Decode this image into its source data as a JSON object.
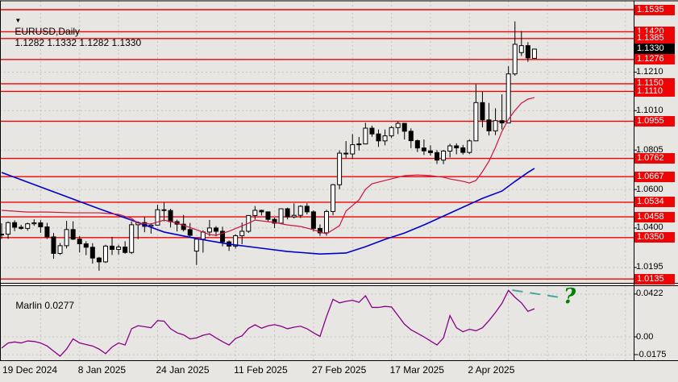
{
  "header": {
    "symbol": "EURUSD,Daily",
    "ohlc": "1.1282 1.1332 1.1282 1.1330"
  },
  "indicator_panel": {
    "name": "Marlin",
    "current_value": "0.0277"
  },
  "annotation": {
    "question_mark": "?"
  },
  "colors": {
    "background": "#e8e6e3",
    "frame": "#000000",
    "grid": "#c7c4c0",
    "level_line": "#ee0404",
    "level_label_bg": "#ee0404",
    "current_price_label_bg": "#000000",
    "bull_candle": "#ffffff",
    "bear_candle": "#000000",
    "candle_outline": "#000000",
    "ma_fast": "#cf1440",
    "ma_slow": "#0000cc",
    "marlin_line": "#880088",
    "projection_dash": "#4ba5a5",
    "question_mark": "#008000"
  },
  "chart_data": {
    "type": "candlestick",
    "symbol": "EURUSD",
    "timeframe": "Daily",
    "current_bar_ohlc": {
      "open": "1.1282",
      "high": "1.1332",
      "low": "1.1282",
      "close": "1.1330"
    },
    "price_axis_ticks": [
      "1.1210",
      "1.1010",
      "1.0805",
      "1.0600",
      "1.0400",
      "1.0195"
    ],
    "level_lines": [
      "1.1535",
      "1.1420",
      "1.1385",
      "1.1276",
      "1.1150",
      "1.1110",
      "1.0955",
      "1.0762",
      "1.0667",
      "1.0534",
      "1.0458",
      "1.0350",
      "1.0135"
    ],
    "current_price": "1.1330",
    "x_axis_labels": [
      {
        "text": "19 Dec 2024",
        "bar": 0
      },
      {
        "text": "8 Jan 2025",
        "bar": 12
      },
      {
        "text": "24 Jan 2025",
        "bar": 24
      },
      {
        "text": "11 Feb 2025",
        "bar": 36
      },
      {
        "text": "27 Feb 2025",
        "bar": 48
      },
      {
        "text": "17 Mar 2025",
        "bar": 60
      },
      {
        "text": "2 Apr 2025",
        "bar": 72
      }
    ],
    "candles": [
      [
        "19 Dec",
        1.0365,
        1.0425,
        1.0344,
        1.0368
      ],
      [
        "20 Dec",
        1.0368,
        1.0434,
        1.0344,
        1.0428
      ],
      [
        "23 Dec",
        1.0428,
        1.044,
        1.0384,
        1.0404
      ],
      [
        "24 Dec",
        1.0404,
        1.0417,
        1.0391,
        1.0398
      ],
      [
        "26 Dec",
        1.0398,
        1.0428,
        1.0386,
        1.0422
      ],
      [
        "27 Dec",
        1.0422,
        1.0445,
        1.0411,
        1.0427
      ],
      [
        "30 Dec",
        1.0427,
        1.0441,
        1.0375,
        1.0406
      ],
      [
        "31 Dec",
        1.0406,
        1.0427,
        1.0343,
        1.0354
      ],
      [
        "2 Jan",
        1.0354,
        1.0374,
        1.024,
        1.0268
      ],
      [
        "3 Jan",
        1.0268,
        1.0322,
        1.026,
        1.0308
      ],
      [
        "6 Jan",
        1.0308,
        1.0437,
        1.0294,
        1.0392
      ],
      [
        "7 Jan",
        1.0392,
        1.0435,
        1.0338,
        1.0342
      ],
      [
        "8 Jan",
        1.0342,
        1.0358,
        1.0273,
        1.0318
      ],
      [
        "9 Jan",
        1.0318,
        1.0331,
        1.0259,
        1.03
      ],
      [
        "10 Jan",
        1.03,
        1.0321,
        1.0215,
        1.0244
      ],
      [
        "13 Jan",
        1.0244,
        1.025,
        1.0178,
        1.0224
      ],
      [
        "14 Jan",
        1.0224,
        1.0313,
        1.0218,
        1.0306
      ],
      [
        "15 Jan",
        1.0306,
        1.0354,
        1.026,
        1.0289
      ],
      [
        "16 Jan",
        1.0289,
        1.0313,
        1.0262,
        1.0301
      ],
      [
        "17 Jan",
        1.0301,
        1.0331,
        1.0266,
        1.0273
      ],
      [
        "20 Jan",
        1.0273,
        1.0434,
        1.0265,
        1.0417
      ],
      [
        "21 Jan",
        1.0417,
        1.0434,
        1.0342,
        1.0428
      ],
      [
        "22 Jan",
        1.0428,
        1.0457,
        1.0378,
        1.0409
      ],
      [
        "23 Jan",
        1.0409,
        1.0425,
        1.0371,
        1.0415
      ],
      [
        "24 Jan",
        1.0415,
        1.0521,
        1.0413,
        1.0495
      ],
      [
        "27 Jan",
        1.0495,
        1.0533,
        1.0435,
        1.0491
      ],
      [
        "28 Jan",
        1.0491,
        1.05,
        1.0403,
        1.0433
      ],
      [
        "29 Jan",
        1.0433,
        1.0443,
        1.0382,
        1.042
      ],
      [
        "30 Jan",
        1.042,
        1.0468,
        1.0382,
        1.0392
      ],
      [
        "31 Jan",
        1.0392,
        1.0426,
        1.0351,
        1.0362
      ],
      [
        "3 Feb",
        1.028,
        1.035,
        1.0208,
        1.0342
      ],
      [
        "4 Feb",
        1.0342,
        1.0388,
        1.0272,
        1.0379
      ],
      [
        "5 Feb",
        1.0379,
        1.0442,
        1.0358,
        1.04
      ],
      [
        "6 Feb",
        1.04,
        1.041,
        1.0357,
        1.0383
      ],
      [
        "7 Feb",
        1.0383,
        1.0407,
        1.0305,
        1.0328
      ],
      [
        "10 Feb",
        1.0328,
        1.0335,
        1.0281,
        1.0306
      ],
      [
        "11 Feb",
        1.0306,
        1.0368,
        1.0293,
        1.036
      ],
      [
        "12 Feb",
        1.036,
        1.0428,
        1.0316,
        1.0383
      ],
      [
        "13 Feb",
        1.0383,
        1.0467,
        1.0375,
        1.0465
      ],
      [
        "14 Feb",
        1.0465,
        1.0514,
        1.0445,
        1.0492
      ],
      [
        "17 Feb",
        1.0492,
        1.0495,
        1.0465,
        1.0484
      ],
      [
        "18 Feb",
        1.0484,
        1.0486,
        1.0435,
        1.0445
      ],
      [
        "19 Feb",
        1.0445,
        1.0454,
        1.04,
        1.0425
      ],
      [
        "20 Feb",
        1.0425,
        1.0502,
        1.042,
        1.05
      ],
      [
        "21 Feb",
        1.05,
        1.0506,
        1.0445,
        1.0458
      ],
      [
        "24 Feb",
        1.0458,
        1.0528,
        1.045,
        1.0466
      ],
      [
        "25 Feb",
        1.0466,
        1.0518,
        1.0452,
        1.0513
      ],
      [
        "26 Feb",
        1.0513,
        1.0529,
        1.0471,
        1.0484
      ],
      [
        "27 Feb",
        1.0484,
        1.0492,
        1.0382,
        1.0398
      ],
      [
        "28 Feb",
        1.0398,
        1.0419,
        1.0359,
        1.0375
      ],
      [
        "3 Mar",
        1.0375,
        1.0495,
        1.036,
        1.0486
      ],
      [
        "4 Mar",
        1.0486,
        1.0629,
        1.0466,
        1.0625
      ],
      [
        "5 Mar",
        1.0625,
        1.0803,
        1.0602,
        1.0789
      ],
      [
        "6 Mar",
        1.0789,
        1.0852,
        1.0765,
        1.0785
      ],
      [
        "7 Mar",
        1.0785,
        1.0888,
        1.0758,
        1.0833
      ],
      [
        "10 Mar",
        1.0833,
        1.0873,
        1.0803,
        1.0837
      ],
      [
        "11 Mar",
        1.0837,
        1.0947,
        1.0835,
        1.0919
      ],
      [
        "12 Mar",
        1.0919,
        1.0932,
        1.0874,
        1.0889
      ],
      [
        "13 Mar",
        1.0889,
        1.0912,
        1.0822,
        1.0853
      ],
      [
        "14 Mar",
        1.0853,
        1.0912,
        1.083,
        1.0879
      ],
      [
        "17 Mar",
        1.0879,
        1.093,
        1.0868,
        1.0922
      ],
      [
        "18 Mar",
        1.0922,
        1.0954,
        1.0888,
        1.0944
      ],
      [
        "19 Mar",
        1.0944,
        1.0946,
        1.086,
        1.0903
      ],
      [
        "20 Mar",
        1.0903,
        1.0918,
        1.0815,
        1.0854
      ],
      [
        "21 Mar",
        1.0854,
        1.086,
        1.0795,
        1.0816
      ],
      [
        "24 Mar",
        1.0816,
        1.086,
        1.078,
        1.0801
      ],
      [
        "25 Mar",
        1.0801,
        1.083,
        1.0777,
        1.0792
      ],
      [
        "26 Mar",
        1.0792,
        1.0805,
        1.0733,
        1.0753
      ],
      [
        "27 Mar",
        1.0753,
        1.0805,
        1.0732,
        1.08
      ],
      [
        "28 Mar",
        1.08,
        1.0838,
        1.0767,
        1.0827
      ],
      [
        "31 Mar",
        1.0827,
        1.084,
        1.0783,
        1.0817
      ],
      [
        "1 Apr",
        1.0817,
        1.0832,
        1.0782,
        1.0793
      ],
      [
        "2 Apr",
        1.0793,
        1.086,
        1.0785,
        1.0853
      ],
      [
        "3 Apr",
        1.0853,
        1.1147,
        1.0853,
        1.1052
      ],
      [
        "4 Apr",
        1.1052,
        1.1109,
        1.0923,
        1.0962
      ],
      [
        "7 Apr",
        1.0962,
        1.105,
        1.0881,
        1.0905
      ],
      [
        "8 Apr",
        1.0905,
        1.1022,
        1.0883,
        1.0958
      ],
      [
        "9 Apr",
        1.0958,
        1.1095,
        1.0913,
        1.0946
      ],
      [
        "10 Apr",
        1.0946,
        1.1241,
        1.0945,
        1.1201
      ],
      [
        "11 Apr",
        1.1201,
        1.1474,
        1.1192,
        1.1355
      ],
      [
        "14 Apr",
        1.1312,
        1.1424,
        1.1294,
        1.1348
      ],
      [
        "15 Apr",
        1.1348,
        1.1366,
        1.1264,
        1.1284
      ],
      [
        "16 Apr",
        1.1282,
        1.1332,
        1.1282,
        1.133
      ]
    ],
    "ma_slow_blue": [
      [
        0,
        1.0689
      ],
      [
        5,
        1.0626
      ],
      [
        10,
        1.0563
      ],
      [
        15,
        1.05
      ],
      [
        20,
        1.0441
      ],
      [
        25,
        1.0379
      ],
      [
        30,
        1.0345
      ],
      [
        35,
        1.0316
      ],
      [
        40,
        1.0295
      ],
      [
        44,
        1.0278
      ],
      [
        49,
        1.0265
      ],
      [
        53,
        1.027
      ],
      [
        56,
        1.0303
      ],
      [
        59,
        1.0341
      ],
      [
        62,
        1.0374
      ],
      [
        65,
        1.0416
      ],
      [
        68,
        1.0462
      ],
      [
        71,
        1.0508
      ],
      [
        74,
        1.0554
      ],
      [
        77,
        1.0592
      ],
      [
        79,
        1.0642
      ],
      [
        81,
        1.0689
      ],
      [
        82,
        1.071
      ]
    ],
    "ma_fast_red": [
      [
        0,
        1.0492
      ],
      [
        4,
        1.0483
      ],
      [
        7,
        1.0483
      ],
      [
        11,
        1.0479
      ],
      [
        15,
        1.0479
      ],
      [
        18,
        1.0471
      ],
      [
        20,
        1.045
      ],
      [
        21,
        1.0425
      ],
      [
        23,
        1.0421
      ],
      [
        25,
        1.0441
      ],
      [
        27,
        1.0425
      ],
      [
        30,
        1.0391
      ],
      [
        32,
        1.0366
      ],
      [
        33,
        1.0362
      ],
      [
        35,
        1.0383
      ],
      [
        38,
        1.0425
      ],
      [
        39,
        1.0441
      ],
      [
        42,
        1.0429
      ],
      [
        44,
        1.0416
      ],
      [
        46,
        1.0408
      ],
      [
        48,
        1.0391
      ],
      [
        49,
        1.0379
      ],
      [
        50,
        1.037
      ],
      [
        52,
        1.0412
      ],
      [
        53,
        1.0488
      ],
      [
        55,
        1.0546
      ],
      [
        56,
        1.0601
      ],
      [
        57,
        1.063
      ],
      [
        59,
        1.0647
      ],
      [
        61,
        1.0664
      ],
      [
        62,
        1.0672
      ],
      [
        64,
        1.0676
      ],
      [
        66,
        1.0672
      ],
      [
        68,
        1.0664
      ],
      [
        69,
        1.0655
      ],
      [
        71,
        1.0643
      ],
      [
        72,
        1.0634
      ],
      [
        73,
        1.0647
      ],
      [
        74,
        1.0693
      ],
      [
        75,
        1.0747
      ],
      [
        76,
        1.0819
      ],
      [
        77,
        1.0902
      ],
      [
        78,
        1.0965
      ],
      [
        79,
        1.1011
      ],
      [
        80,
        1.1049
      ],
      [
        81,
        1.107
      ],
      [
        82,
        1.1078
      ]
    ],
    "indicator": {
      "name": "Marlin",
      "current_value": "0.0277",
      "axis_ticks": [
        "0.0422",
        "0.00",
        "-0.0175"
      ],
      "axis_tick_values": [
        0.0422,
        0,
        -0.0175
      ],
      "values": [
        -0.011,
        -0.006,
        -0.005,
        -0.006,
        -0.004,
        -0.0045,
        -0.006,
        -0.009,
        -0.014,
        -0.019,
        -0.012,
        -0.002,
        -0.006,
        -0.0075,
        -0.009,
        -0.012,
        -0.0165,
        -0.01,
        -0.006,
        -0.008,
        0.008,
        0.011,
        0.01,
        0.009,
        0.016,
        0.0155,
        0.008,
        0.004,
        0.002,
        -0.002,
        -0.001,
        0.0016,
        0.003,
        -0.001,
        -0.0047,
        -0.008,
        -0.0016,
        0.001,
        0.0083,
        0.0119,
        0.0085,
        0.0109,
        0.012,
        0.0105,
        0.008,
        0.0095,
        0.0105,
        0.008,
        0.004,
        0.0005,
        0.02,
        0.037,
        0.0335,
        0.035,
        0.036,
        0.034,
        0.0405,
        0.029,
        0.029,
        0.03,
        0.0295,
        0.021,
        0.0125,
        0.007,
        0.0035,
        0.0,
        -0.004,
        -0.008,
        -0.001,
        0.021,
        0.009,
        0.005,
        0.0075,
        0.006,
        0.009,
        0.016,
        0.024,
        0.033,
        0.0458,
        0.039,
        0.0335,
        0.0251,
        0.0277
      ]
    },
    "projection": {
      "style": "dashed",
      "start_bar": 78.6,
      "start_value": 0.046,
      "end_bar": 86.3,
      "end_value": 0.0385
    }
  }
}
